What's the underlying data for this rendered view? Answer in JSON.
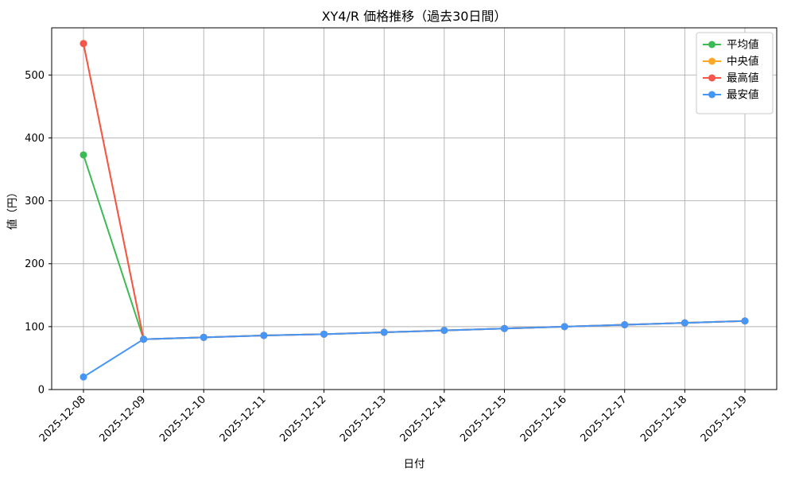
{
  "figure": {
    "title": "XY4/R 価格推移（過去30日間）",
    "xlabel": "日付",
    "ylabel": "値（円）"
  },
  "chart_data": {
    "type": "line",
    "title": "XY4/R 価格推移（過去30日間）",
    "xlabel": "日付",
    "ylabel": "値（円）",
    "x": [
      "2025-12-08",
      "2025-12-09",
      "2025-12-10",
      "2025-12-11",
      "2025-12-12",
      "2025-12-13",
      "2025-12-14",
      "2025-12-15",
      "2025-12-16",
      "2025-12-17",
      "2025-12-18",
      "2025-12-19"
    ],
    "series": [
      {
        "key": "mean",
        "name": "平均値",
        "color": "#3cba54",
        "values": [
          373,
          80,
          83,
          86,
          88,
          91,
          94,
          97,
          100,
          103,
          106,
          109
        ]
      },
      {
        "key": "median",
        "name": "中央値",
        "color": "#ffa726",
        "values": [
          550,
          80,
          83,
          86,
          88,
          91,
          94,
          97,
          100,
          103,
          106,
          109
        ]
      },
      {
        "key": "max",
        "name": "最高値",
        "color": "#f5554a",
        "values": [
          550,
          80,
          83,
          86,
          88,
          91,
          94,
          97,
          100,
          103,
          106,
          109
        ]
      },
      {
        "key": "min",
        "name": "最安値",
        "color": "#4596f7",
        "values": [
          20,
          80,
          83,
          86,
          88,
          91,
          94,
          97,
          100,
          103,
          106,
          109
        ]
      }
    ],
    "ylim": [
      0,
      575
    ],
    "yticks": [
      0,
      100,
      200,
      300,
      400,
      500
    ],
    "grid": true,
    "legend_position": "upper right",
    "legend": [
      "平均値",
      "中央値",
      "最高値",
      "最安値"
    ]
  },
  "colors": {
    "background": "#ffffff",
    "axis": "#000000",
    "grid": "#b0b0b0",
    "legend_border": "#c9c9c9"
  }
}
